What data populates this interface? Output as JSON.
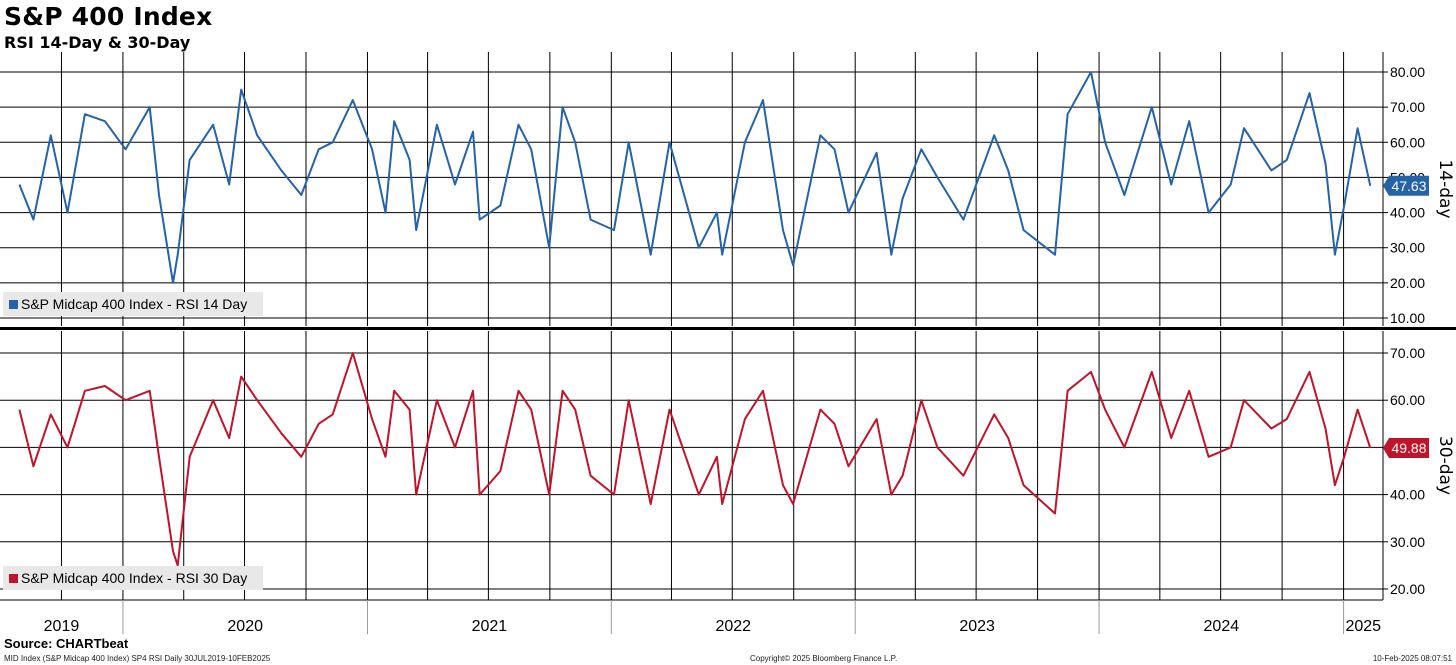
{
  "header": {
    "title": "S&P 400 Index",
    "subtitle": "RSI 14-Day & 30-Day"
  },
  "footer": {
    "source": "Source: CHARTbeat",
    "security": "MID Index (S&P Midcap 400 Index) SP4 RSI  Daily 30JUL2019-10FEB2025",
    "copyright": "Copyright© 2025 Bloomberg Finance L.P.",
    "timestamp": "10-Feb-2025 08:07:51"
  },
  "colors": {
    "rsi14": "#2563a8",
    "rsi30": "#c0142a",
    "grid": "#000000"
  },
  "chart_data": [
    {
      "type": "line",
      "panel": "top",
      "axis_title": "14-day",
      "ylim": [
        10,
        80
      ],
      "yticks": [
        "80.00",
        "70.00",
        "60.00",
        "50.00",
        "40.00",
        "30.00",
        "20.00",
        "10.00"
      ],
      "last_value_label": "47.63",
      "legend": "S&P Midcap 400 Index - RSI 14 Day",
      "legend_position": "bottom-left",
      "grid": true,
      "series": [
        {
          "name": "S&P Midcap 400 Index - RSI 14 Day",
          "x": [
            "2019-07-30",
            "2019-08-20",
            "2019-09-15",
            "2019-10-10",
            "2019-11-05",
            "2019-12-05",
            "2020-01-05",
            "2020-02-10",
            "2020-02-24",
            "2020-03-16",
            "2020-03-23",
            "2020-04-10",
            "2020-05-15",
            "2020-06-08",
            "2020-06-26",
            "2020-07-20",
            "2020-08-25",
            "2020-09-24",
            "2020-10-20",
            "2020-11-10",
            "2020-12-10",
            "2021-01-08",
            "2021-01-28",
            "2021-02-10",
            "2021-03-05",
            "2021-03-15",
            "2021-04-15",
            "2021-05-12",
            "2021-06-08",
            "2021-06-18",
            "2021-07-19",
            "2021-08-15",
            "2021-09-03",
            "2021-09-30",
            "2021-10-20",
            "2021-11-08",
            "2021-12-01",
            "2022-01-05",
            "2022-01-27",
            "2022-03-01",
            "2022-03-29",
            "2022-05-12",
            "2022-06-08",
            "2022-06-16",
            "2022-07-20",
            "2022-08-16",
            "2022-09-15",
            "2022-09-30",
            "2022-11-10",
            "2022-12-01",
            "2022-12-22",
            "2023-02-02",
            "2023-02-24",
            "2023-03-13",
            "2023-04-10",
            "2023-05-04",
            "2023-06-12",
            "2023-07-28",
            "2023-08-18",
            "2023-09-10",
            "2023-10-27",
            "2023-11-15",
            "2023-12-20",
            "2024-01-10",
            "2024-02-08",
            "2024-03-20",
            "2024-04-18",
            "2024-05-15",
            "2024-06-13",
            "2024-07-16",
            "2024-08-05",
            "2024-09-15",
            "2024-10-08",
            "2024-11-11",
            "2024-12-05",
            "2024-12-19",
            "2025-01-02",
            "2025-01-22",
            "2025-02-10"
          ],
          "values": [
            48,
            38,
            62,
            40,
            68,
            66,
            58,
            70,
            45,
            20,
            28,
            55,
            65,
            48,
            75,
            62,
            52,
            45,
            58,
            60,
            72,
            58,
            40,
            66,
            55,
            35,
            65,
            48,
            63,
            38,
            42,
            65,
            58,
            30,
            70,
            60,
            38,
            35,
            60,
            28,
            60,
            30,
            40,
            28,
            60,
            72,
            35,
            25,
            62,
            58,
            40,
            57,
            28,
            44,
            58,
            50,
            38,
            62,
            52,
            35,
            28,
            68,
            80,
            60,
            45,
            70,
            48,
            66,
            40,
            48,
            64,
            52,
            55,
            74,
            54,
            28,
            42,
            64,
            47.63
          ]
        }
      ]
    },
    {
      "type": "line",
      "panel": "bottom",
      "axis_title": "30-day",
      "ylim": [
        20,
        70
      ],
      "yticks": [
        "70.00",
        "60.00",
        "50.00",
        "40.00",
        "30.00",
        "20.00"
      ],
      "last_value_label": "49.88",
      "legend": "S&P Midcap 400 Index - RSI 30 Day",
      "legend_position": "bottom-left",
      "grid": true,
      "x_axis_labels": [
        "2019",
        "2020",
        "2021",
        "2022",
        "2023",
        "2024",
        "2025"
      ],
      "series": [
        {
          "name": "S&P Midcap 400 Index - RSI 30 Day",
          "x": [
            "2019-07-30",
            "2019-08-20",
            "2019-09-15",
            "2019-10-10",
            "2019-11-05",
            "2019-12-05",
            "2020-01-05",
            "2020-02-10",
            "2020-02-24",
            "2020-03-16",
            "2020-03-23",
            "2020-04-10",
            "2020-05-15",
            "2020-06-08",
            "2020-06-26",
            "2020-07-20",
            "2020-08-25",
            "2020-09-24",
            "2020-10-20",
            "2020-11-10",
            "2020-12-10",
            "2021-01-08",
            "2021-01-28",
            "2021-02-10",
            "2021-03-05",
            "2021-03-15",
            "2021-04-15",
            "2021-05-12",
            "2021-06-08",
            "2021-06-18",
            "2021-07-19",
            "2021-08-15",
            "2021-09-03",
            "2021-09-30",
            "2021-10-20",
            "2021-11-08",
            "2021-12-01",
            "2022-01-05",
            "2022-01-27",
            "2022-03-01",
            "2022-03-29",
            "2022-05-12",
            "2022-06-08",
            "2022-06-16",
            "2022-07-20",
            "2022-08-16",
            "2022-09-15",
            "2022-09-30",
            "2022-11-10",
            "2022-12-01",
            "2022-12-22",
            "2023-02-02",
            "2023-02-24",
            "2023-03-13",
            "2023-04-10",
            "2023-05-04",
            "2023-06-12",
            "2023-07-28",
            "2023-08-18",
            "2023-09-10",
            "2023-10-27",
            "2023-11-15",
            "2023-12-20",
            "2024-01-10",
            "2024-02-08",
            "2024-03-20",
            "2024-04-18",
            "2024-05-15",
            "2024-06-13",
            "2024-07-16",
            "2024-08-05",
            "2024-09-15",
            "2024-10-08",
            "2024-11-11",
            "2024-12-05",
            "2024-12-19",
            "2025-01-02",
            "2025-01-22",
            "2025-02-10"
          ],
          "values": [
            58,
            46,
            57,
            50,
            62,
            63,
            60,
            62,
            48,
            28,
            25,
            48,
            60,
            52,
            65,
            60,
            53,
            48,
            55,
            57,
            70,
            56,
            48,
            62,
            58,
            40,
            60,
            50,
            62,
            40,
            45,
            62,
            58,
            40,
            62,
            58,
            44,
            40,
            60,
            38,
            58,
            40,
            48,
            38,
            56,
            62,
            42,
            38,
            58,
            55,
            46,
            56,
            40,
            44,
            60,
            50,
            44,
            57,
            52,
            42,
            36,
            62,
            66,
            58,
            50,
            66,
            52,
            62,
            48,
            50,
            60,
            54,
            56,
            66,
            54,
            42,
            48,
            58,
            49.88
          ]
        }
      ]
    }
  ]
}
